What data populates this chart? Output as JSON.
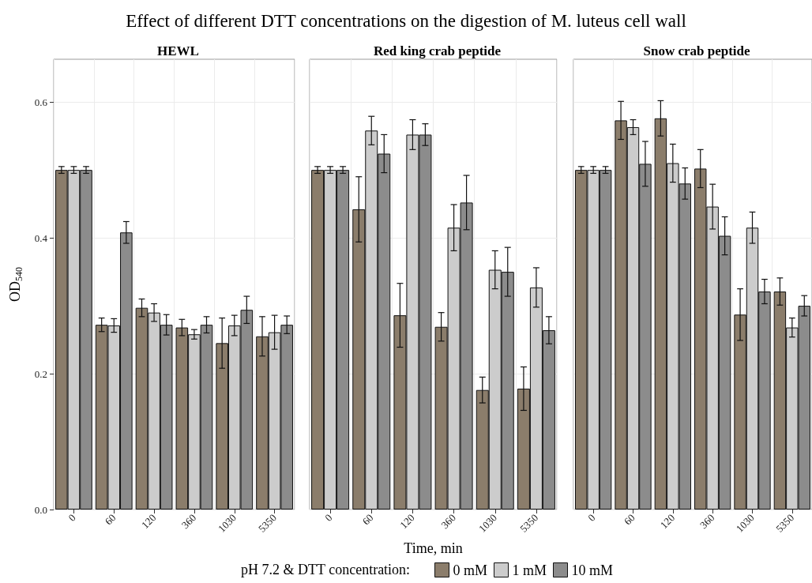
{
  "chart_data": [
    {
      "type": "bar",
      "title": "Effect of different DTT concentrations on the digestion of M. luteus cell wall",
      "subtitle": "HEWL",
      "ylabel": "OD$_{540}$",
      "legend_title": "pH 7.2 & DTT concentration:",
      "legend": "bottom",
      "grid": true,
      "categories": [
        "0",
        "60",
        "120",
        "360",
        "1030",
        "5350"
      ],
      "ylim": [
        0,
        0.663
      ],
      "yticks": [
        {
          "value": 0,
          "label": "0.0"
        },
        {
          "value": 0.2,
          "label": "0.2"
        },
        {
          "value": 0.4,
          "label": "0.4"
        },
        {
          "value": 0.6,
          "label": "0.6"
        }
      ],
      "series": [
        {
          "name": "0 mM",
          "color": "#8b7d6b",
          "values": [
            0.5,
            0.272,
            0.297,
            0.268,
            0.245,
            0.255
          ],
          "errors": [
            0.005,
            0.01,
            0.013,
            0.012,
            0.037,
            0.029
          ]
        },
        {
          "name": "1 mM",
          "color": "#cccccc",
          "values": [
            0.5,
            0.271,
            0.29,
            0.258,
            0.271,
            0.261
          ],
          "errors": [
            0.005,
            0.01,
            0.013,
            0.007,
            0.015,
            0.025
          ]
        },
        {
          "name": "10 mM",
          "color": "#8c8c8c",
          "values": [
            0.5,
            0.408,
            0.272,
            0.272,
            0.294,
            0.272
          ],
          "errors": [
            0.005,
            0.016,
            0.015,
            0.012,
            0.02,
            0.013
          ]
        }
      ]
    },
    {
      "type": "bar",
      "subtitle": "Red king crab peptide",
      "xlabel": "Time, min",
      "grid": true,
      "tick_labels": "x",
      "categories": [
        "0",
        "60",
        "120",
        "360",
        "1030",
        "5350"
      ],
      "ylim": [
        0,
        0.663
      ],
      "yticks": [
        0,
        0.2,
        0.4,
        0.6
      ],
      "series": [
        {
          "color": "#8b7d6b",
          "values": [
            0.5,
            0.442,
            0.286,
            0.269,
            0.176,
            0.178
          ],
          "errors": [
            0.005,
            0.048,
            0.047,
            0.021,
            0.019,
            0.032
          ]
        },
        {
          "color": "#cccccc",
          "values": [
            0.5,
            0.558,
            0.552,
            0.415,
            0.353,
            0.327
          ],
          "errors": [
            0.005,
            0.021,
            0.022,
            0.034,
            0.028,
            0.029
          ]
        },
        {
          "color": "#8c8c8c",
          "values": [
            0.5,
            0.524,
            0.552,
            0.452,
            0.35,
            0.264
          ],
          "errors": [
            0.005,
            0.028,
            0.016,
            0.04,
            0.036,
            0.02
          ]
        }
      ]
    },
    {
      "type": "bar",
      "subtitle": "Snow crab peptide",
      "grid": true,
      "tick_labels": "x",
      "categories": [
        "0",
        "60",
        "120",
        "360",
        "1030",
        "5350"
      ],
      "ylim": [
        0,
        0.663
      ],
      "yticks": [
        0,
        0.2,
        0.4,
        0.6
      ],
      "series": [
        {
          "color": "#8b7d6b",
          "values": [
            0.5,
            0.573,
            0.576,
            0.502,
            0.287,
            0.321
          ],
          "errors": [
            0.005,
            0.028,
            0.026,
            0.028,
            0.038,
            0.02
          ]
        },
        {
          "color": "#cccccc",
          "values": [
            0.5,
            0.563,
            0.51,
            0.446,
            0.415,
            0.268
          ],
          "errors": [
            0.005,
            0.011,
            0.028,
            0.033,
            0.023,
            0.014
          ]
        },
        {
          "color": "#8c8c8c",
          "values": [
            0.5,
            0.509,
            0.48,
            0.403,
            0.321,
            0.3
          ],
          "errors": [
            0.005,
            0.033,
            0.023,
            0.028,
            0.018,
            0.015
          ]
        }
      ]
    }
  ]
}
